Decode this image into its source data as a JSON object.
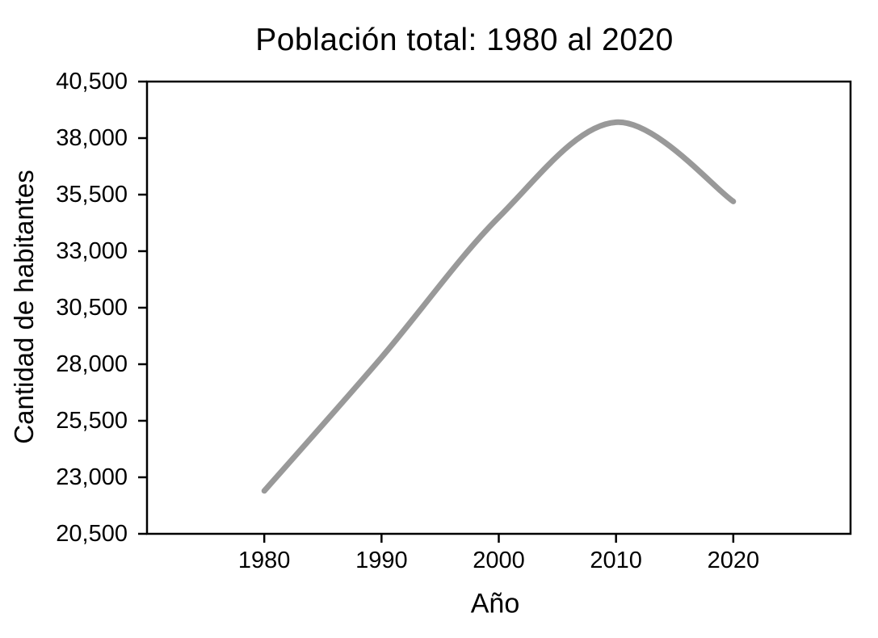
{
  "page": {
    "background": "#ffffff",
    "text_color": "#000000"
  },
  "chart_data": {
    "type": "line",
    "title": "Población total: 1980 al 2020",
    "xlabel": "Año",
    "ylabel": "Cantidad de habitantes",
    "x": [
      1980,
      1990,
      2000,
      2010,
      2020
    ],
    "series": [
      {
        "name": "Población total",
        "values": [
          22400,
          28300,
          34500,
          38700,
          35200
        ]
      }
    ],
    "xlim": [
      1970,
      2030
    ],
    "ylim": [
      20500,
      40500
    ],
    "xticks": [
      1980,
      1990,
      2000,
      2010,
      2020
    ],
    "xtick_labels": [
      "1980",
      "1990",
      "2000",
      "2010",
      "2020"
    ],
    "yticks": [
      20500,
      23000,
      25500,
      28000,
      30500,
      33000,
      35500,
      38000,
      40500
    ],
    "ytick_labels": [
      "20,500",
      "23,000",
      "25,500",
      "28,000",
      "30,500",
      "33,000",
      "35,500",
      "38,000",
      "40,500"
    ],
    "grid": false,
    "legend_position": "none",
    "smooth": true,
    "line_color": "#999999",
    "line_width": 7,
    "axis_color": "#000000",
    "tick_length": 11,
    "notes": "Curve peaks at 2010 (~38,700) then declines to 2020 (~35,200)"
  }
}
